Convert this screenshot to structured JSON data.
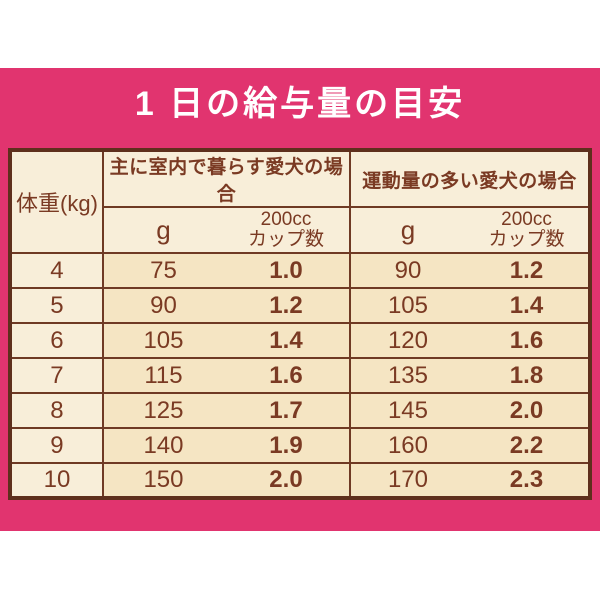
{
  "title": "1 日の給与量の目安",
  "table": {
    "weight_header": "体重(kg)",
    "groups": [
      {
        "label": "主に室内で暮らす愛犬の場合",
        "g_header": "g",
        "cup_header_line1": "200cc",
        "cup_header_line2": "カップ数"
      },
      {
        "label": "運動量の多い愛犬の場合",
        "g_header": "g",
        "cup_header_line1": "200cc",
        "cup_header_line2": "カップ数"
      }
    ],
    "rows": [
      {
        "weight": "4",
        "indoor_g": "75",
        "indoor_cups": "1.0",
        "active_g": "90",
        "active_cups": "1.2"
      },
      {
        "weight": "5",
        "indoor_g": "90",
        "indoor_cups": "1.2",
        "active_g": "105",
        "active_cups": "1.4"
      },
      {
        "weight": "6",
        "indoor_g": "105",
        "indoor_cups": "1.4",
        "active_g": "120",
        "active_cups": "1.6"
      },
      {
        "weight": "7",
        "indoor_g": "115",
        "indoor_cups": "1.6",
        "active_g": "135",
        "active_cups": "1.8"
      },
      {
        "weight": "8",
        "indoor_g": "125",
        "indoor_cups": "1.7",
        "active_g": "145",
        "active_cups": "2.0"
      },
      {
        "weight": "9",
        "indoor_g": "140",
        "indoor_cups": "1.9",
        "active_g": "160",
        "active_cups": "2.2"
      },
      {
        "weight": "10",
        "indoor_g": "150",
        "indoor_cups": "2.0",
        "active_g": "170",
        "active_cups": "2.3"
      }
    ]
  },
  "colors": {
    "accent-pink": "#e1346f",
    "cream-light": "#f8eed9",
    "cream-tan": "#f5e5c3",
    "border-dark": "#5e2f1c",
    "border-line": "#6f3a24",
    "text-brown": "#7a3a23",
    "title-white": "#ffffff"
  }
}
